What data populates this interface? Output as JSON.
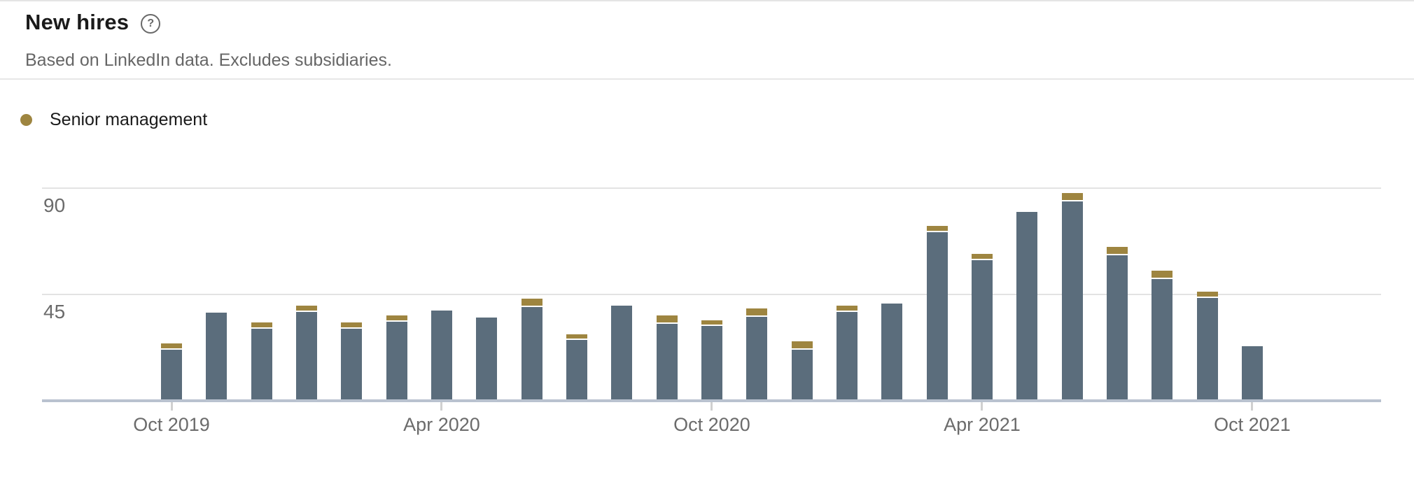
{
  "header": {
    "title": "New hires",
    "help_icon": "?",
    "subtitle": "Based on LinkedIn data. Excludes subsidiaries."
  },
  "legend": {
    "items": [
      {
        "label": "Senior management",
        "color": "#9e8540"
      }
    ]
  },
  "chart_data": {
    "type": "bar",
    "stacked": true,
    "title": "New hires",
    "categories": [
      "Oct 2019",
      "Nov 2019",
      "Dec 2019",
      "Jan 2020",
      "Feb 2020",
      "Mar 2020",
      "Apr 2020",
      "May 2020",
      "Jun 2020",
      "Jul 2020",
      "Aug 2020",
      "Sep 2020",
      "Oct 2020",
      "Nov 2020",
      "Dec 2020",
      "Jan 2021",
      "Feb 2021",
      "Mar 2021",
      "Apr 2021",
      "May 2021",
      "Jun 2021",
      "Jul 2021",
      "Aug 2021",
      "Sep 2021",
      "Oct 2021"
    ],
    "series": [
      {
        "name": "New hires (total)",
        "color": "#5b6d7c",
        "values": [
          24,
          37,
          33,
          40,
          33,
          36,
          38,
          35,
          43,
          28,
          40,
          36,
          34,
          39,
          25,
          40,
          41,
          74,
          62,
          80,
          88,
          65,
          55,
          46,
          23
        ]
      },
      {
        "name": "Senior management",
        "color": "#9e8540",
        "values": [
          2,
          0,
          2,
          2,
          2,
          2,
          0,
          0,
          3,
          2,
          0,
          3,
          2,
          3,
          3,
          2,
          0,
          2,
          2,
          0,
          3,
          3,
          3,
          2,
          0
        ]
      }
    ],
    "ylim": [
      0,
      90
    ],
    "yticks": [
      45,
      90
    ],
    "xtick_indices": [
      0,
      6,
      12,
      18,
      24
    ],
    "xtick_labels": [
      "Oct 2019",
      "Apr 2020",
      "Oct 2020",
      "Apr 2021",
      "Oct 2021"
    ],
    "grid": "horizontal",
    "legend_position": "top-left"
  }
}
